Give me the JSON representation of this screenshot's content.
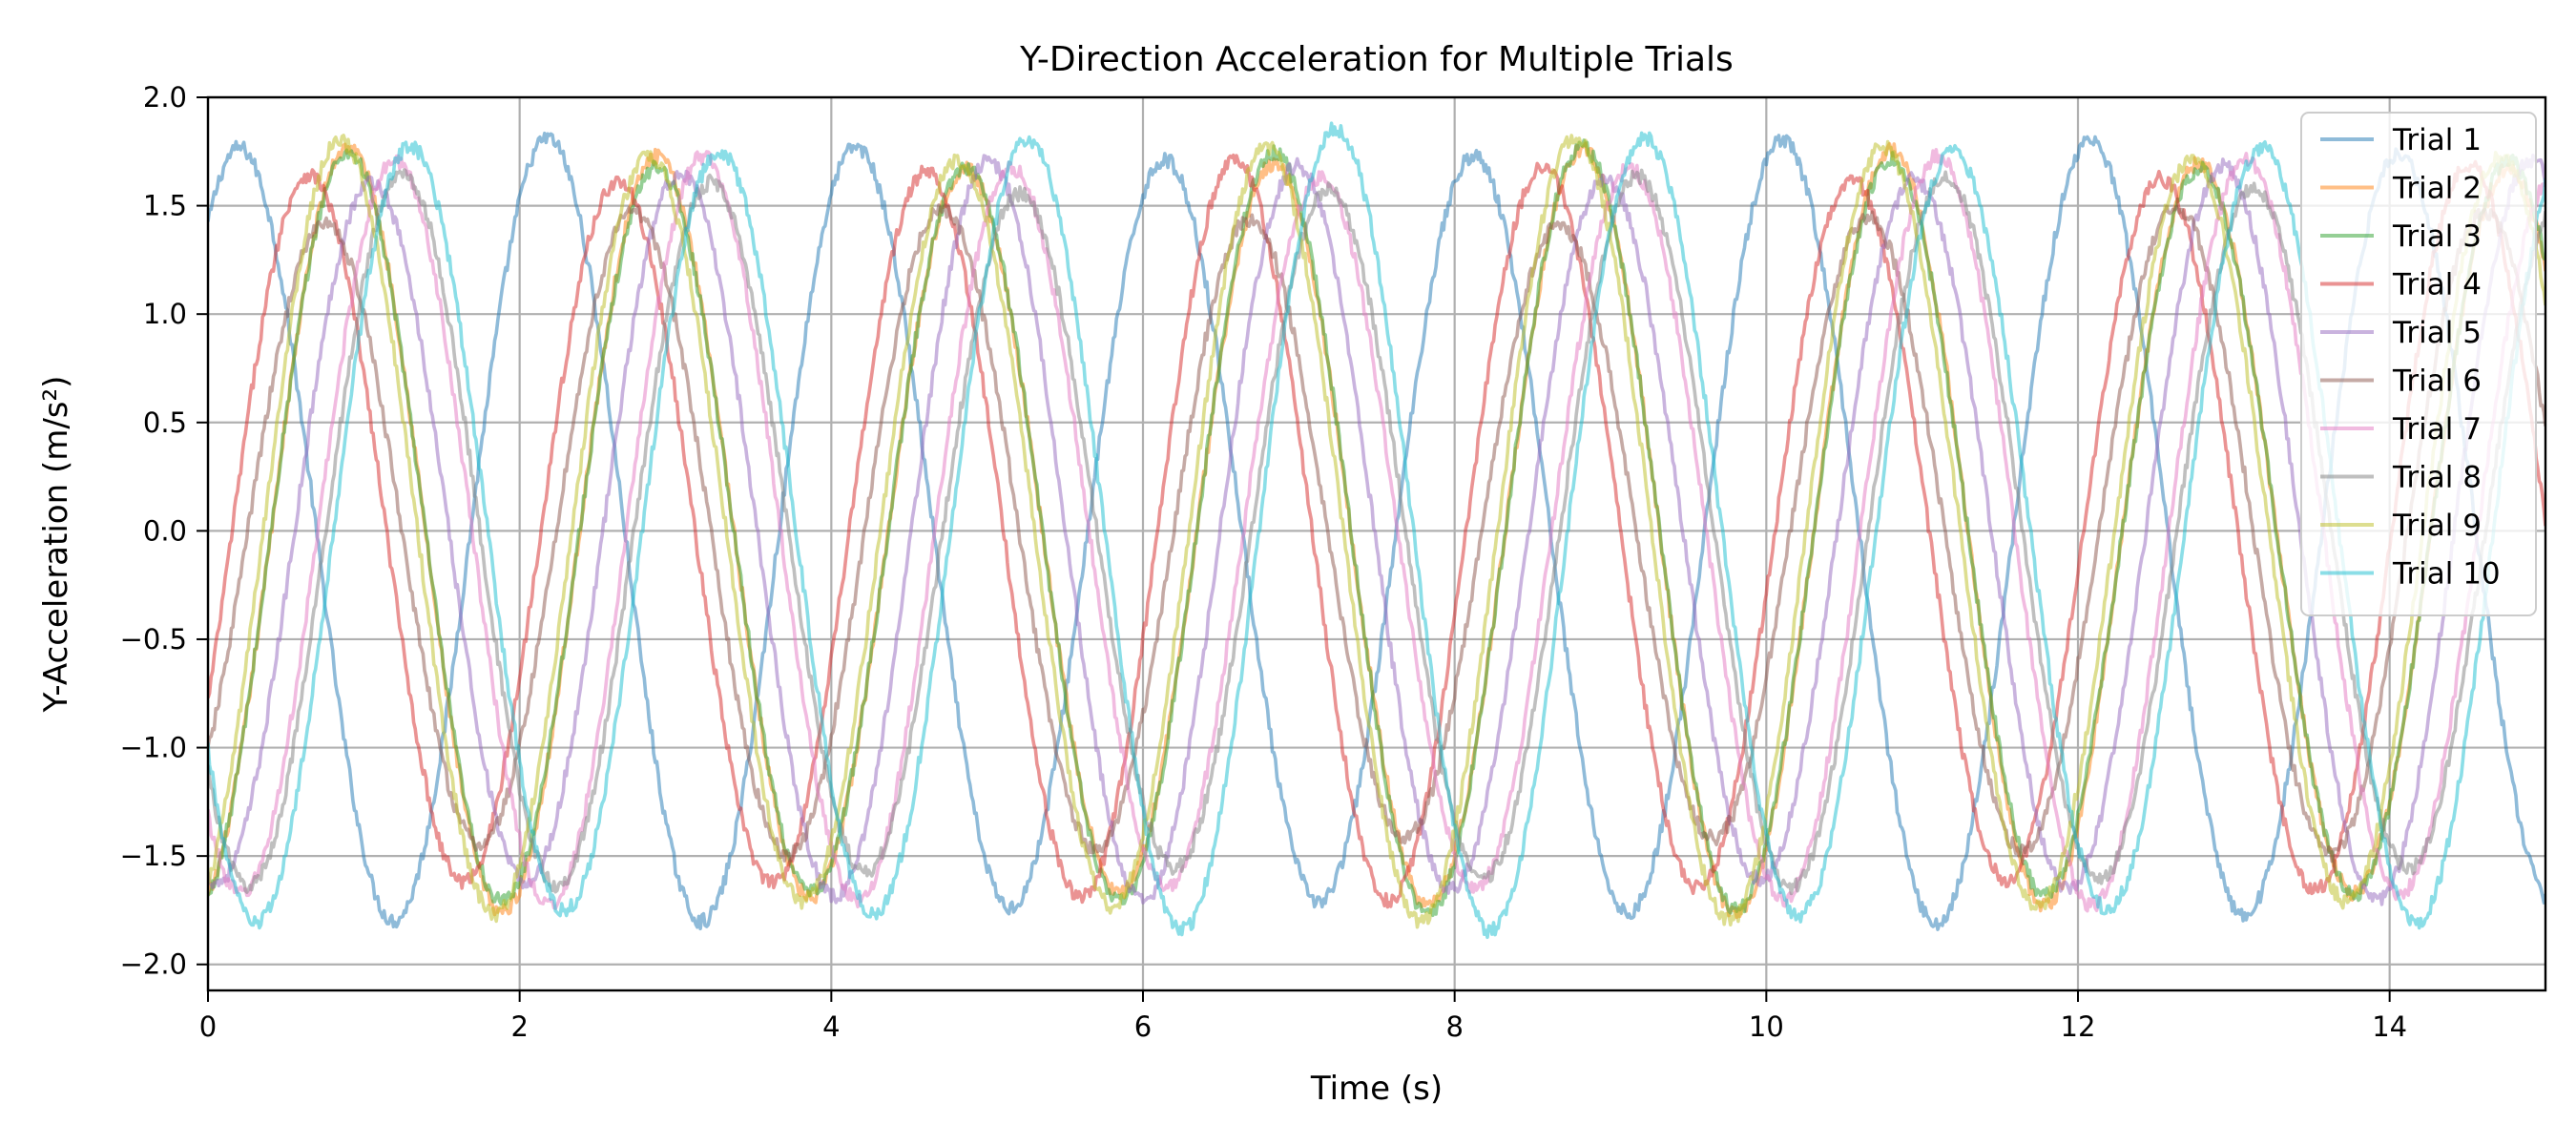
{
  "chart_data": {
    "type": "line",
    "title": "Y-Direction Acceleration for Multiple Trials",
    "xlabel": "Time (s)",
    "ylabel": "Y-Acceleration (m/s²)",
    "xlim": [
      0,
      15
    ],
    "ylim": [
      -2.12,
      2.0
    ],
    "xticks": [
      0,
      2,
      4,
      6,
      8,
      10,
      12,
      14
    ],
    "xtick_labels": [
      "0",
      "2",
      "4",
      "6",
      "8",
      "10",
      "12",
      "14"
    ],
    "yticks": [
      -2.0,
      -1.5,
      -1.0,
      -0.5,
      0.0,
      0.5,
      1.0,
      1.5,
      2.0
    ],
    "ytick_labels": [
      "−2.0",
      "−1.5",
      "−1.0",
      "−0.5",
      "0.0",
      "0.5",
      "1.0",
      "1.5",
      "2.0"
    ],
    "grid": true,
    "legend_position": "top-right",
    "series": [
      {
        "name": "Trial 1",
        "color": "#1f77b4",
        "amplitude": 1.76,
        "period": 1.98,
        "phase": 0.45,
        "peak_time": 0.2
      },
      {
        "name": "Trial 2",
        "color": "#ff7f0e",
        "amplitude": 1.72,
        "period": 1.98,
        "phase": -1.95,
        "peak_time": 0.9
      },
      {
        "name": "Trial 3",
        "color": "#2ca02c",
        "amplitude": 1.72,
        "period": 1.98,
        "phase": -1.95,
        "peak_time": 0.9
      },
      {
        "name": "Trial 4",
        "color": "#d62728",
        "amplitude": 1.66,
        "period": 1.98,
        "phase": -0.6,
        "peak_time": 0.65
      },
      {
        "name": "Trial 5",
        "color": "#9467bd",
        "amplitude": 1.66,
        "period": 1.98,
        "phase": -1.45,
        "peak_time": 1.05
      },
      {
        "name": "Trial 6",
        "color": "#8c564b",
        "amplitude": 1.45,
        "period": 1.98,
        "phase": -0.95,
        "peak_time": 0.75
      },
      {
        "name": "Trial 7",
        "color": "#e377c2",
        "amplitude": 1.68,
        "period": 1.98,
        "phase": -2.45,
        "peak_time": 1.2
      },
      {
        "name": "Trial 8",
        "color": "#7f7f7f",
        "amplitude": 1.6,
        "period": 1.98,
        "phase": -2.3,
        "peak_time": 1.25
      },
      {
        "name": "Trial 9",
        "color": "#bcbd22",
        "amplitude": 1.76,
        "period": 1.98,
        "phase": -1.3,
        "peak_time": 0.85
      },
      {
        "name": "Trial 10",
        "color": "#17becf",
        "amplitude": 1.8,
        "period": 1.98,
        "phase": -2.45,
        "peak_time": 1.3
      }
    ]
  }
}
